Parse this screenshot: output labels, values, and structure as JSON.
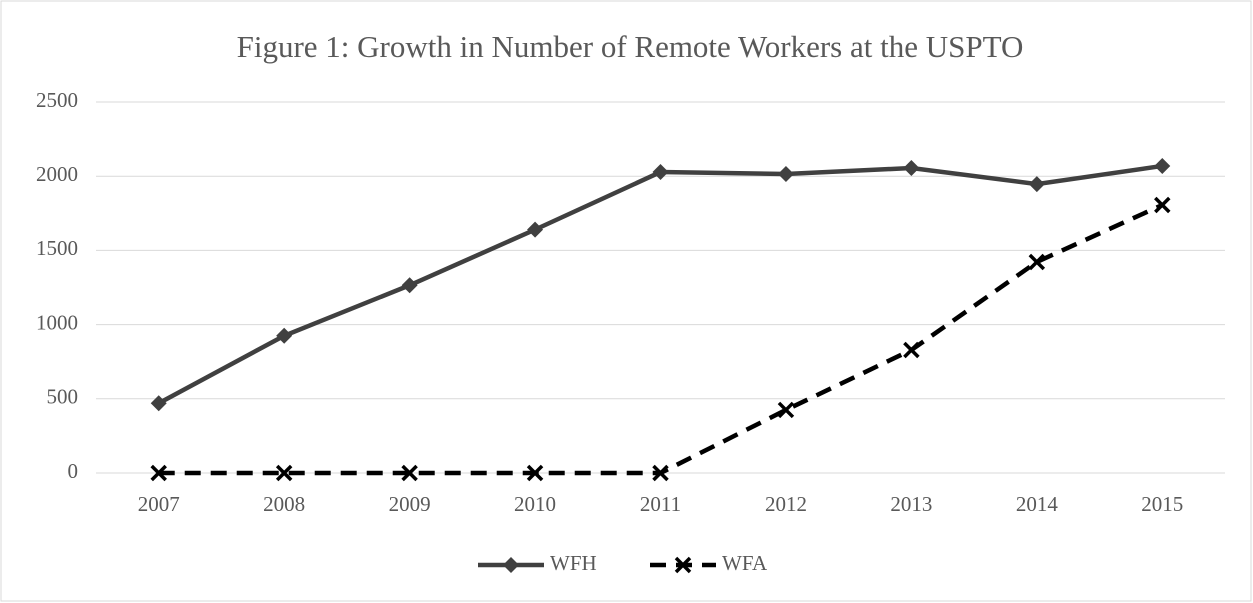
{
  "chart_data": {
    "type": "line",
    "title": "Figure 1: Growth in Number of Remote Workers at the USPTO",
    "categories": [
      "2007",
      "2008",
      "2009",
      "2010",
      "2011",
      "2012",
      "2013",
      "2014",
      "2015"
    ],
    "series": [
      {
        "name": "WFH",
        "color": "#404040",
        "marker": "diamond",
        "line_style": "solid",
        "values": [
          470,
          925,
          1265,
          1640,
          2028,
          2015,
          2055,
          1947,
          2069
        ]
      },
      {
        "name": "WFA",
        "color": "#000000",
        "marker": "x",
        "line_style": "dashed",
        "values": [
          0,
          0,
          0,
          0,
          0,
          425,
          829,
          1422,
          1806
        ]
      }
    ],
    "ylim": [
      0,
      2500
    ],
    "yticks": [
      0,
      500,
      1000,
      1500,
      2000,
      2500
    ],
    "grid": true,
    "legend": "bottom"
  }
}
